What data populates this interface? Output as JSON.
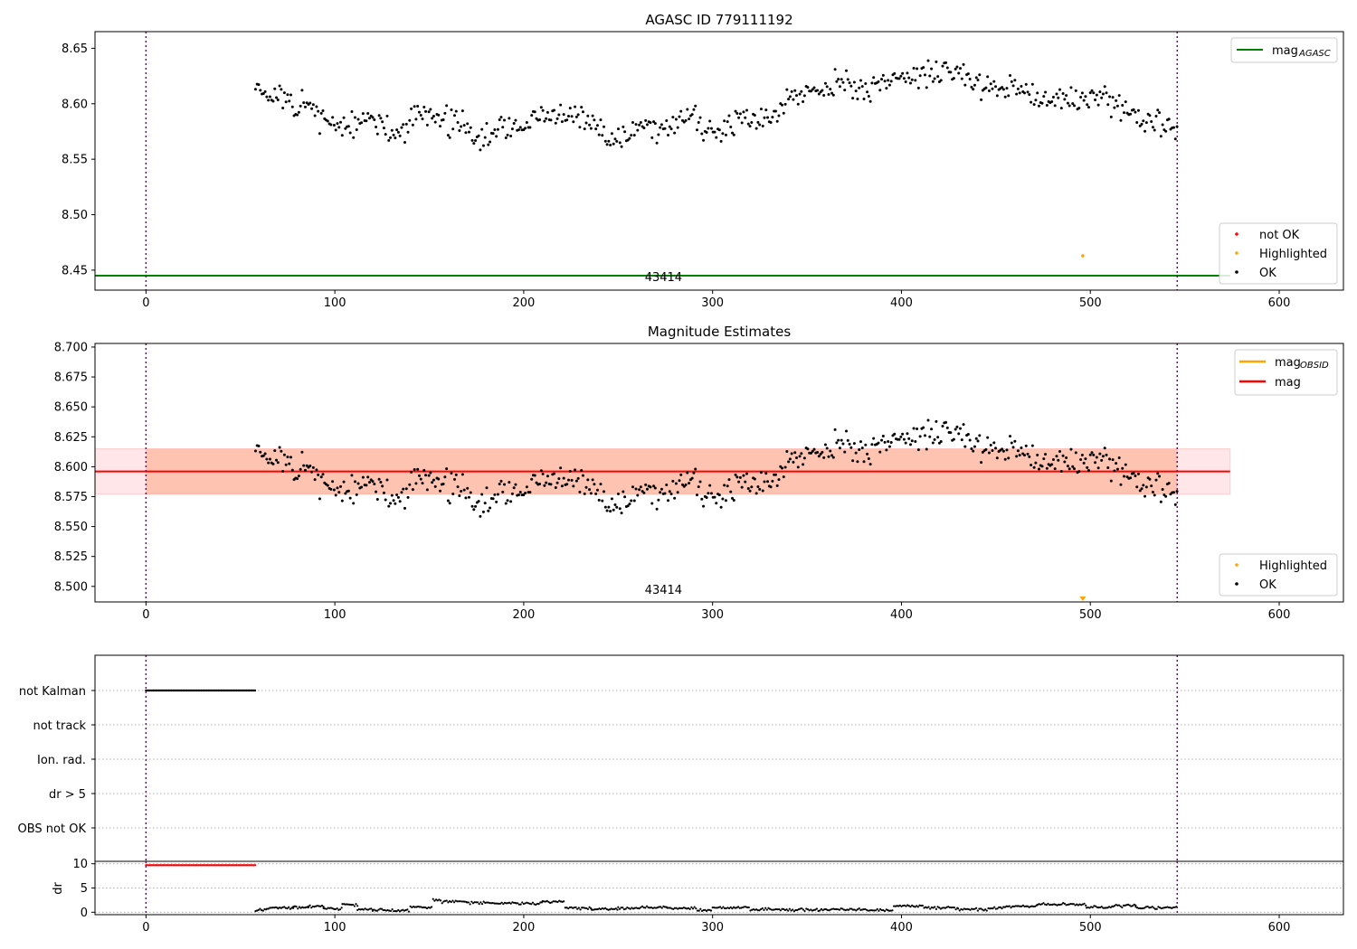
{
  "chart_data": [
    {
      "type": "scatter",
      "title": "AGASC ID 779111192",
      "xlim": [
        -27,
        634
      ],
      "ylim": [
        8.432,
        8.665
      ],
      "yticks": [
        "8.45",
        "8.50",
        "8.55",
        "8.60",
        "8.65"
      ],
      "xticks": [
        "0",
        "100",
        "200",
        "300",
        "400",
        "500",
        "600"
      ],
      "annotation": "43414",
      "vlines": [
        0,
        546
      ],
      "hline": {
        "name": "mag",
        "sub": "AGASC",
        "y": 8.445,
        "color": "#008000"
      },
      "legend_lines": [
        {
          "name": "mag",
          "sub": "AGASC",
          "color": "#008000"
        }
      ],
      "legend_points": [
        {
          "name": "not OK",
          "color": "#ff0000"
        },
        {
          "name": "Highlighted",
          "color": "#ffa500"
        },
        {
          "name": "OK",
          "color": "#000000"
        }
      ],
      "highlighted": [
        {
          "x": 496,
          "y": 8.463
        }
      ],
      "ok_trend": [
        [
          58,
          8.622
        ],
        [
          62,
          8.612
        ],
        [
          66,
          8.606
        ],
        [
          72,
          8.604
        ],
        [
          78,
          8.596
        ],
        [
          86,
          8.598
        ],
        [
          94,
          8.588
        ],
        [
          102,
          8.58
        ],
        [
          110,
          8.578
        ],
        [
          118,
          8.588
        ],
        [
          126,
          8.576
        ],
        [
          134,
          8.574
        ],
        [
          144,
          8.59
        ],
        [
          152,
          8.59
        ],
        [
          160,
          8.586
        ],
        [
          168,
          8.58
        ],
        [
          176,
          8.565
        ],
        [
          182,
          8.573
        ],
        [
          190,
          8.577
        ],
        [
          200,
          8.581
        ],
        [
          210,
          8.589
        ],
        [
          220,
          8.588
        ],
        [
          230,
          8.586
        ],
        [
          240,
          8.578
        ],
        [
          246,
          8.568
        ],
        [
          254,
          8.57
        ],
        [
          262,
          8.584
        ],
        [
          270,
          8.578
        ],
        [
          280,
          8.58
        ],
        [
          288,
          8.59
        ],
        [
          296,
          8.572
        ],
        [
          304,
          8.574
        ],
        [
          314,
          8.592
        ],
        [
          324,
          8.586
        ],
        [
          334,
          8.594
        ],
        [
          344,
          8.61
        ],
        [
          354,
          8.612
        ],
        [
          364,
          8.62
        ],
        [
          374,
          8.614
        ],
        [
          384,
          8.614
        ],
        [
          394,
          8.622
        ],
        [
          404,
          8.624
        ],
        [
          414,
          8.628
        ],
        [
          424,
          8.63
        ],
        [
          432,
          8.626
        ],
        [
          440,
          8.617
        ],
        [
          450,
          8.616
        ],
        [
          460,
          8.616
        ],
        [
          468,
          8.61
        ],
        [
          476,
          8.604
        ],
        [
          484,
          8.604
        ],
        [
          492,
          8.602
        ],
        [
          500,
          8.608
        ],
        [
          508,
          8.604
        ],
        [
          516,
          8.596
        ],
        [
          524,
          8.59
        ],
        [
          532,
          8.584
        ],
        [
          540,
          8.578
        ],
        [
          546,
          8.576
        ]
      ]
    },
    {
      "type": "scatter",
      "title": "Magnitude Estimates",
      "xlim": [
        -27,
        634
      ],
      "ylim": [
        8.487,
        8.703
      ],
      "yticks": [
        "8.500",
        "8.525",
        "8.550",
        "8.575",
        "8.600",
        "8.625",
        "8.650",
        "8.675",
        "8.700"
      ],
      "xticks": [
        "0",
        "100",
        "200",
        "300",
        "400",
        "500",
        "600"
      ],
      "annotation": "43414",
      "vlines": [
        0,
        546
      ],
      "mag_line": {
        "y": 8.596,
        "x0": -27,
        "x1": 574,
        "color": "#ff0000"
      },
      "band_outer": {
        "y0": 8.577,
        "y1": 8.615,
        "color": "#ffb6c1"
      },
      "band_inner": {
        "y0": 8.577,
        "y1": 8.615,
        "x0": 0,
        "x1": 546,
        "color": "#ffa07a"
      },
      "legend_lines": [
        {
          "name": "mag",
          "sub": "OBSID",
          "color": "#ffa500"
        },
        {
          "name": "mag",
          "sub": "",
          "color": "#ff0000"
        }
      ],
      "legend_points": [
        {
          "name": "Highlighted",
          "color": "#ffa500"
        },
        {
          "name": "OK",
          "color": "#000000"
        }
      ],
      "highlighted_offscale": {
        "x": 496
      }
    },
    {
      "type": "scatter",
      "xlim": [
        -27,
        634
      ],
      "xticks": [
        "0",
        "100",
        "200",
        "300",
        "400",
        "500",
        "600"
      ],
      "flag_rows": [
        "not Kalman",
        "not track",
        "Ion. rad.",
        "dr > 5",
        "OBS not OK"
      ],
      "flag_points": [
        {
          "row": "not Kalman",
          "x0": 0,
          "x1": 58
        }
      ],
      "vlines": [
        0,
        546
      ]
    },
    {
      "type": "scatter",
      "ylabel": "dr",
      "xlim": [
        -27,
        634
      ],
      "ylim": [
        -0.5,
        10.5
      ],
      "yticks": [
        "0",
        "5",
        "10"
      ],
      "xticks": [
        "0",
        "100",
        "200",
        "300",
        "400",
        "500",
        "600"
      ],
      "vlines": [
        0,
        546
      ],
      "dr_red": {
        "x0": 0,
        "x1": 58,
        "y": 9.7
      },
      "dr_segments": [
        [
          58,
          64,
          0.5
        ],
        [
          64,
          70,
          0.9
        ],
        [
          70,
          78,
          0.9
        ],
        [
          78,
          86,
          1.0
        ],
        [
          86,
          94,
          1.2
        ],
        [
          94,
          104,
          0.7
        ],
        [
          104,
          112,
          1.5
        ],
        [
          112,
          120,
          0.6
        ],
        [
          120,
          140,
          0.4
        ],
        [
          140,
          152,
          1.0
        ],
        [
          152,
          156,
          2.6
        ],
        [
          156,
          170,
          2.2
        ],
        [
          170,
          196,
          1.9
        ],
        [
          196,
          210,
          1.8
        ],
        [
          210,
          222,
          2.2
        ],
        [
          222,
          236,
          0.8
        ],
        [
          236,
          250,
          0.7
        ],
        [
          250,
          262,
          0.8
        ],
        [
          262,
          276,
          1.0
        ],
        [
          276,
          292,
          0.8
        ],
        [
          292,
          300,
          0.4
        ],
        [
          300,
          320,
          1.0
        ],
        [
          320,
          336,
          0.6
        ],
        [
          336,
          360,
          0.5
        ],
        [
          360,
          380,
          0.6
        ],
        [
          380,
          396,
          0.4
        ],
        [
          396,
          412,
          1.3
        ],
        [
          412,
          430,
          0.9
        ],
        [
          430,
          446,
          0.6
        ],
        [
          446,
          454,
          0.8
        ],
        [
          454,
          472,
          1.2
        ],
        [
          472,
          498,
          1.6
        ],
        [
          498,
          512,
          1.0
        ],
        [
          512,
          524,
          1.3
        ],
        [
          524,
          546,
          0.9
        ]
      ]
    }
  ]
}
